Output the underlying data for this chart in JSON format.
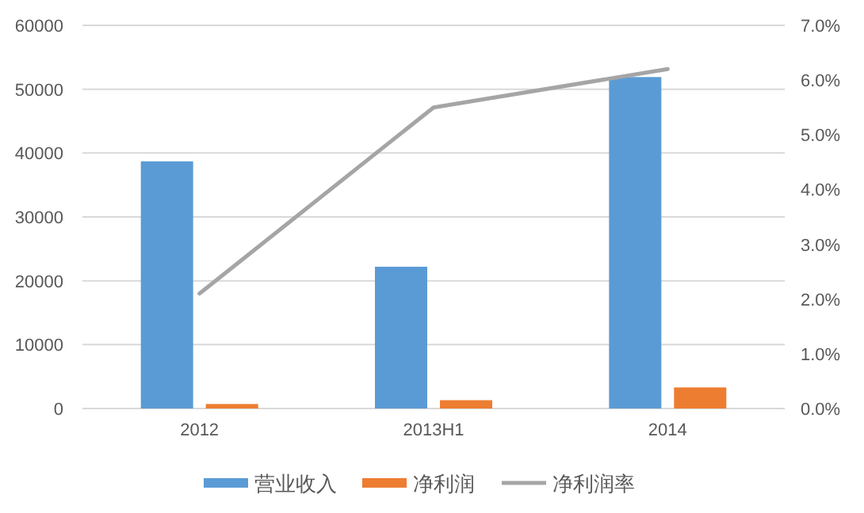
{
  "chart_data": {
    "type": "bar",
    "categories": [
      "2012",
      "2013H1",
      "2014"
    ],
    "series": [
      {
        "name": "营业收入",
        "color": "#5b9bd5",
        "values": [
          38700,
          22200,
          51900
        ]
      },
      {
        "name": "净利润",
        "color": "#ed7d31",
        "values": [
          700,
          1300,
          3300
        ]
      },
      {
        "name": "净利润率",
        "type": "line",
        "axis": "y2",
        "color": "#a5a5a5",
        "values": [
          2.1,
          5.5,
          6.2
        ]
      }
    ],
    "ylim": [
      0,
      60000
    ],
    "yticks": [
      0,
      10000,
      20000,
      30000,
      40000,
      50000,
      60000
    ],
    "y2lim": [
      0,
      7
    ],
    "y2ticks": [
      {
        "value": 0,
        "label": "0.0%"
      },
      {
        "value": 1,
        "label": "1.0%"
      },
      {
        "value": 2,
        "label": "2.0%"
      },
      {
        "value": 3,
        "label": "3.0%"
      },
      {
        "value": 4,
        "label": "4.0%"
      },
      {
        "value": 5,
        "label": "5.0%"
      },
      {
        "value": 6,
        "label": "6.0%"
      },
      {
        "value": 7,
        "label": "7.0%"
      }
    ],
    "grid": "y",
    "legend": "bottom"
  }
}
